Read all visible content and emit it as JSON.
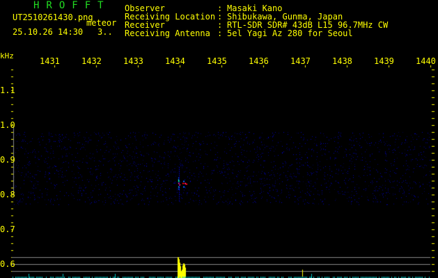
{
  "header": {
    "brand": "HROFFT",
    "filename": "UT2510261430.png",
    "tag": "meteor",
    "datetime": "25.10.26 14:30",
    "count": "3..",
    "fields": [
      {
        "label": "Observer",
        "value": "Masaki Kano"
      },
      {
        "label": "Receiving Location",
        "value": "Shibukawa, Gunma, Japan"
      },
      {
        "label": "Receiver",
        "value": "RTL-SDR SDR# 43dB L15 96.7MHz CW"
      },
      {
        "label": "Receiving Antenna",
        "value": "5el Yagi Az 280 for Seoul"
      }
    ]
  },
  "axis": {
    "unit": "kHz",
    "freq_labels": [
      "1431",
      "1432",
      "1433",
      "1434",
      "1435",
      "1436",
      "1437",
      "1438",
      "1439",
      "1440"
    ],
    "time_labels": [
      "1.1",
      "1.0",
      "0.9",
      "0.8",
      "0.7",
      "0.6"
    ]
  },
  "colors": {
    "text": "#ffff00",
    "brand": "#22dd22",
    "grid": "#888888",
    "noise": "#0000c0",
    "spectrum": "#ffff00",
    "baseline": "#00c0c0"
  }
}
